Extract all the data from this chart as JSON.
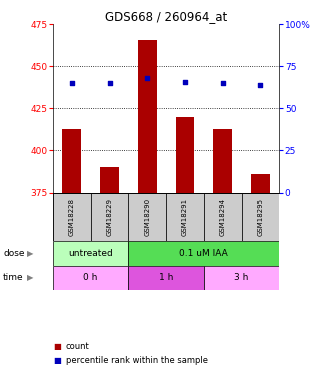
{
  "title": "GDS668 / 260964_at",
  "samples": [
    "GSM18228",
    "GSM18229",
    "GSM18290",
    "GSM18291",
    "GSM18294",
    "GSM18295"
  ],
  "counts": [
    413,
    390,
    466,
    420,
    413,
    386
  ],
  "percentile_ranks": [
    65,
    65,
    68,
    66,
    65,
    64
  ],
  "ylim_left": [
    375,
    475
  ],
  "ylim_right": [
    0,
    100
  ],
  "yticks_left": [
    375,
    400,
    425,
    450,
    475
  ],
  "yticks_right": [
    0,
    25,
    50,
    75,
    100
  ],
  "bar_color": "#aa0000",
  "dot_color": "#0000bb",
  "bar_bottom": 375,
  "dose_configs": [
    [
      0,
      2,
      "untreated",
      "#bbffbb"
    ],
    [
      2,
      6,
      "0.1 uM IAA",
      "#55dd55"
    ]
  ],
  "time_configs": [
    [
      0,
      2,
      "0 h",
      "#ffaaff"
    ],
    [
      2,
      4,
      "1 h",
      "#dd55dd"
    ],
    [
      4,
      6,
      "3 h",
      "#ffaaff"
    ]
  ],
  "legend_count_color": "#aa0000",
  "legend_pct_color": "#0000bb",
  "sample_box_color": "#cccccc",
  "grid_yticks": [
    400,
    425,
    450
  ]
}
